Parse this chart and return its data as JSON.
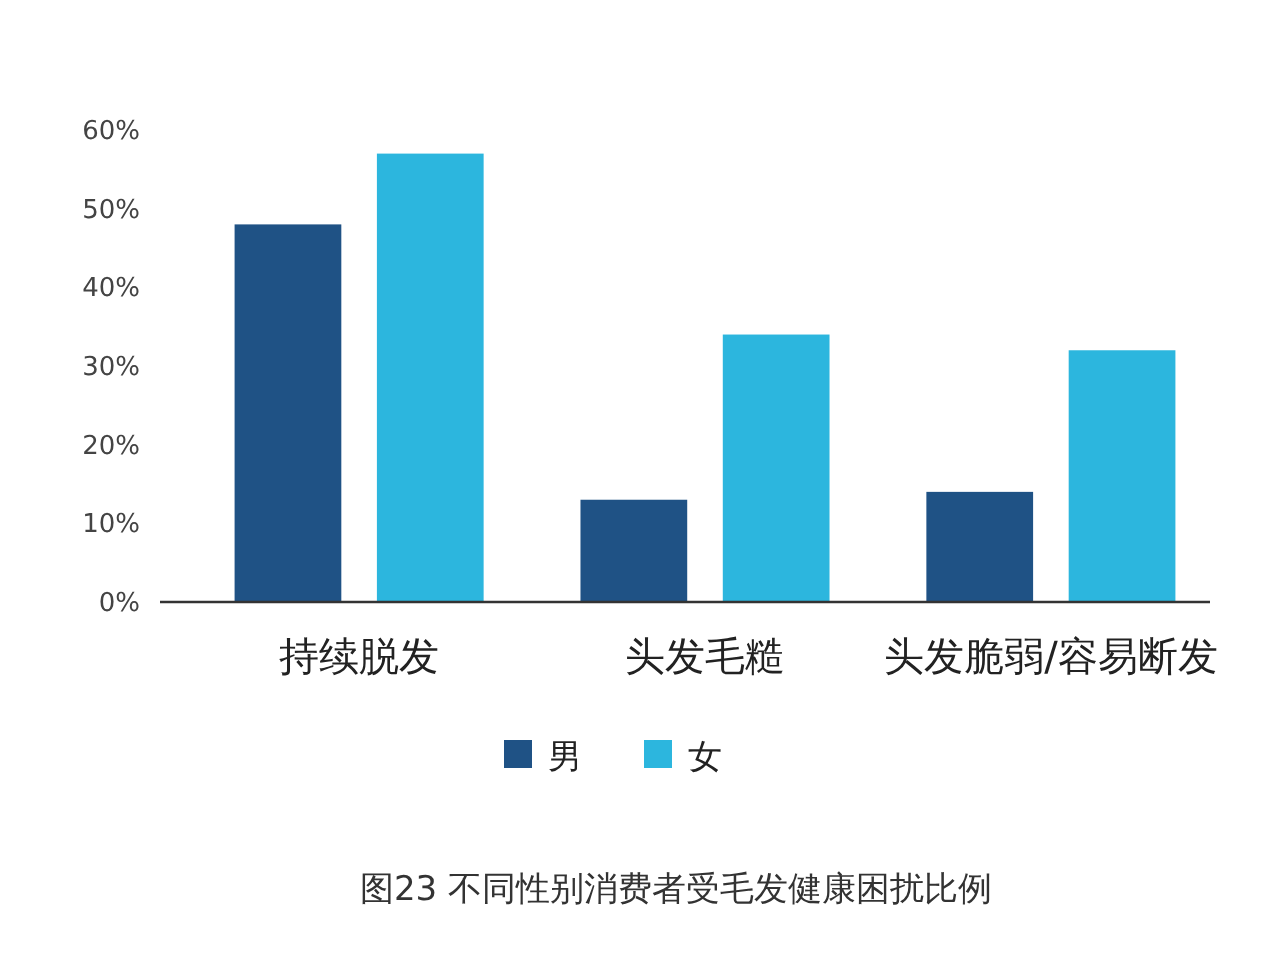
{
  "chart_data": {
    "type": "bar",
    "title": "图23 不同性别消费者受毛发健康困扰比例",
    "categories": [
      "持续脱发",
      "头发毛糙",
      "头发脆弱/容易断发"
    ],
    "series": [
      {
        "name": "男",
        "color": "#1f5285",
        "values": [
          48,
          13,
          14
        ]
      },
      {
        "name": "女",
        "color": "#2cb6de",
        "values": [
          57,
          34,
          32
        ]
      }
    ],
    "ylim": [
      0,
      60
    ],
    "yticks": [
      {
        "value": 0,
        "label": "0%"
      },
      {
        "value": 10,
        "label": "10%"
      },
      {
        "value": 20,
        "label": "20%"
      },
      {
        "value": 30,
        "label": "30%"
      },
      {
        "value": 40,
        "label": "40%"
      },
      {
        "value": 50,
        "label": "50%"
      },
      {
        "value": 60,
        "label": "60%"
      }
    ],
    "grid": false,
    "legend": "bottom"
  }
}
